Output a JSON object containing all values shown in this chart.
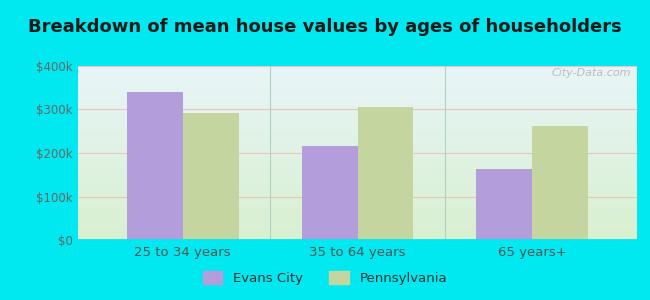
{
  "title": "Breakdown of mean house values by ages of householders",
  "categories": [
    "25 to 34 years",
    "35 to 64 years",
    "65 years+"
  ],
  "evans_city_values": [
    340000,
    215000,
    163000
  ],
  "pennsylvania_values": [
    293000,
    305000,
    263000
  ],
  "evans_city_color": "#b39ddb",
  "pennsylvania_color": "#c5d5a0",
  "bar_width": 0.32,
  "ylim": [
    0,
    400000
  ],
  "yticks": [
    0,
    100000,
    200000,
    300000,
    400000
  ],
  "ytick_labels": [
    "$0",
    "$100k",
    "$200k",
    "$300k",
    "$400k"
  ],
  "background_outer": "#00e8f0",
  "background_inner_bottom": "#d8f0d0",
  "background_inner_top": "#e8f5f8",
  "grid_color": "#f0b8b8",
  "title_fontsize": 13,
  "legend_labels": [
    "Evans City",
    "Pennsylvania"
  ],
  "watermark": "City-Data.com",
  "separator_color": "#b0d0c0"
}
